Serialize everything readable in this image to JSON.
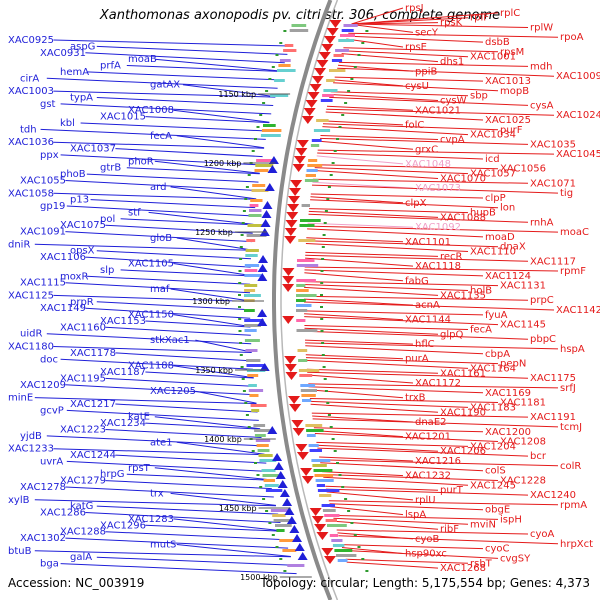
{
  "title": "Xanthomonas axonopodis pv. citri str. 306, complete genome",
  "footer": {
    "accession": "Accession: NC_003919",
    "summary": "Topology: circular; Length: 5,175,554 bp; Genes: 4,373"
  },
  "colors": {
    "reverse_strand": "#1f1fd8",
    "forward_strand": "#e41a1a",
    "highlight_gene": "#f0a0c8",
    "backbone": "#8a8a8a",
    "tick_dots": "#2e9a2e"
  },
  "scale": {
    "ticks": [
      {
        "label": "1150 kbp"
      },
      {
        "label": "1200 kbp"
      },
      {
        "label": "1250 kbp"
      },
      {
        "label": "1300 kbp"
      },
      {
        "label": "1350 kbp"
      },
      {
        "label": "1400 kbp"
      },
      {
        "label": "1450 kbp"
      },
      {
        "label": "1500 kbp"
      }
    ]
  },
  "left_genes": [
    {
      "label": "XAC0925"
    },
    {
      "label": "aspG"
    },
    {
      "label": "XAC0931"
    },
    {
      "label": "moaB"
    },
    {
      "label": "prfA"
    },
    {
      "label": "hemA"
    },
    {
      "label": "cirA"
    },
    {
      "label": "gatAX"
    },
    {
      "label": "XAC1003"
    },
    {
      "label": "typA"
    },
    {
      "label": "gst"
    },
    {
      "label": "XAC1008"
    },
    {
      "label": "XAC1015"
    },
    {
      "label": "kbl"
    },
    {
      "label": "tdh"
    },
    {
      "label": "fecA"
    },
    {
      "label": "XAC1036"
    },
    {
      "label": "XAC1037"
    },
    {
      "label": "ppx"
    },
    {
      "label": "phoR"
    },
    {
      "label": "gtrB"
    },
    {
      "label": "phoB"
    },
    {
      "label": "XAC1055"
    },
    {
      "label": "ard"
    },
    {
      "label": "XAC1058"
    },
    {
      "label": "p13"
    },
    {
      "label": "gp19"
    },
    {
      "label": "stf"
    },
    {
      "label": "pol"
    },
    {
      "label": "XAC1075"
    },
    {
      "label": "XAC1091"
    },
    {
      "label": "gloB"
    },
    {
      "label": "dniR"
    },
    {
      "label": "opsX"
    },
    {
      "label": "XAC1106"
    },
    {
      "label": "XAC1105"
    },
    {
      "label": "slp"
    },
    {
      "label": "moxR"
    },
    {
      "label": "XAC1115"
    },
    {
      "label": "maf"
    },
    {
      "label": "XAC1125"
    },
    {
      "label": "prpR"
    },
    {
      "label": "XAC1149"
    },
    {
      "label": "XAC1150"
    },
    {
      "label": "XAC1153"
    },
    {
      "label": "XAC1160"
    },
    {
      "label": "uidR"
    },
    {
      "label": "stkXac1"
    },
    {
      "label": "XAC1180"
    },
    {
      "label": "XAC1178"
    },
    {
      "label": "doc"
    },
    {
      "label": "XAC1188"
    },
    {
      "label": "XAC1187"
    },
    {
      "label": "XAC1195"
    },
    {
      "label": "XAC1209"
    },
    {
      "label": "XAC1205"
    },
    {
      "label": "minE"
    },
    {
      "label": "XAC1217"
    },
    {
      "label": "gcvP"
    },
    {
      "label": "katE"
    },
    {
      "label": "XAC1234"
    },
    {
      "label": "XAC1223"
    },
    {
      "label": "yjdB"
    },
    {
      "label": "ate1"
    },
    {
      "label": "XAC1233"
    },
    {
      "label": "XAC1244"
    },
    {
      "label": "uvrA"
    },
    {
      "label": "rpsT"
    },
    {
      "label": "hrpG"
    },
    {
      "label": "XAC1279"
    },
    {
      "label": "XAC1278"
    },
    {
      "label": "trx"
    },
    {
      "label": "xylB"
    },
    {
      "label": "katG"
    },
    {
      "label": "XAC1286"
    },
    {
      "label": "XAC1283"
    },
    {
      "label": "XAC1296"
    },
    {
      "label": "XAC1288"
    },
    {
      "label": "XAC1302"
    },
    {
      "label": "mutS"
    },
    {
      "label": "btuB"
    },
    {
      "label": "galA"
    },
    {
      "label": "bga"
    }
  ],
  "right_genes": [
    {
      "label": "rpsJ"
    },
    {
      "label": "rplC"
    },
    {
      "label": "rplF"
    },
    {
      "label": "rpsK"
    },
    {
      "label": "rplW"
    },
    {
      "label": "secY"
    },
    {
      "label": "rpoA"
    },
    {
      "label": "dsbB"
    },
    {
      "label": "rpsE"
    },
    {
      "label": "rpsM"
    },
    {
      "label": "XAC1001"
    },
    {
      "label": "dhs1"
    },
    {
      "label": "mdh"
    },
    {
      "label": "ppiB"
    },
    {
      "label": "XAC1009"
    },
    {
      "label": "XAC1013"
    },
    {
      "label": "cysU"
    },
    {
      "label": "mopB"
    },
    {
      "label": "sbp"
    },
    {
      "label": "cysW"
    },
    {
      "label": "cysA"
    },
    {
      "label": "XAC1021"
    },
    {
      "label": "XAC1024"
    },
    {
      "label": "XAC1025"
    },
    {
      "label": "folC"
    },
    {
      "label": "purF"
    },
    {
      "label": "XAC1034"
    },
    {
      "label": "cvpA"
    },
    {
      "label": "XAC1035"
    },
    {
      "label": "grxC"
    },
    {
      "label": "XAC1045"
    },
    {
      "label": "icd"
    },
    {
      "label": "XAC1048",
      "highlight": true
    },
    {
      "label": "XAC1056"
    },
    {
      "label": "XAC1057"
    },
    {
      "label": "XAC1070"
    },
    {
      "label": "XAC1071"
    },
    {
      "label": "XAC1073",
      "highlight": true
    },
    {
      "label": "tig"
    },
    {
      "label": "clpP"
    },
    {
      "label": "clpX"
    },
    {
      "label": "lon"
    },
    {
      "label": "hupB"
    },
    {
      "label": "XAC1088"
    },
    {
      "label": "rnhA"
    },
    {
      "label": "XAC1092",
      "highlight": true
    },
    {
      "label": "moaC"
    },
    {
      "label": "moaD"
    },
    {
      "label": "XAC1101"
    },
    {
      "label": "dnaX"
    },
    {
      "label": "XAC1110"
    },
    {
      "label": "recR"
    },
    {
      "label": "XAC1117"
    },
    {
      "label": "XAC1118"
    },
    {
      "label": "rpmF"
    },
    {
      "label": "XAC1124"
    },
    {
      "label": "fabG"
    },
    {
      "label": "XAC1131"
    },
    {
      "label": "holB"
    },
    {
      "label": "XAC1135"
    },
    {
      "label": "prpC"
    },
    {
      "label": "acnA"
    },
    {
      "label": "XAC1142"
    },
    {
      "label": "fyuA"
    },
    {
      "label": "XAC1144"
    },
    {
      "label": "XAC1145"
    },
    {
      "label": "fecA"
    },
    {
      "label": "glpQ"
    },
    {
      "label": "pbpC"
    },
    {
      "label": "hflC"
    },
    {
      "label": "hspA"
    },
    {
      "label": "cbpA"
    },
    {
      "label": "purA"
    },
    {
      "label": "pepN"
    },
    {
      "label": "XAC1164"
    },
    {
      "label": "XAC1161"
    },
    {
      "label": "XAC1175"
    },
    {
      "label": "XAC1172"
    },
    {
      "label": "srfJ"
    },
    {
      "label": "XAC1169"
    },
    {
      "label": "trxB"
    },
    {
      "label": "XAC1181"
    },
    {
      "label": "XAC1183"
    },
    {
      "label": "XAC1190"
    },
    {
      "label": "XAC1191"
    },
    {
      "label": "dnaE2"
    },
    {
      "label": "tcmJ"
    },
    {
      "label": "XAC1200"
    },
    {
      "label": "XAC1201"
    },
    {
      "label": "XAC1208"
    },
    {
      "label": "XAC1204"
    },
    {
      "label": "XAC1206"
    },
    {
      "label": "bcr"
    },
    {
      "label": "XAC1216"
    },
    {
      "label": "colR"
    },
    {
      "label": "colS"
    },
    {
      "label": "XAC1232"
    },
    {
      "label": "XAC1228"
    },
    {
      "label": "XAC1245"
    },
    {
      "label": "purT"
    },
    {
      "label": "XAC1240"
    },
    {
      "label": "rplU"
    },
    {
      "label": "rpmA"
    },
    {
      "label": "obgE"
    },
    {
      "label": "lspA"
    },
    {
      "label": "ispH"
    },
    {
      "label": "mviN"
    },
    {
      "label": "ribF"
    },
    {
      "label": "cyoA"
    },
    {
      "label": "cyoB"
    },
    {
      "label": "hrpXct"
    },
    {
      "label": "cyoC"
    },
    {
      "label": "hsp90xc"
    },
    {
      "label": "cvgSY"
    },
    {
      "label": "rsbT"
    },
    {
      "label": "XAC1268"
    }
  ]
}
